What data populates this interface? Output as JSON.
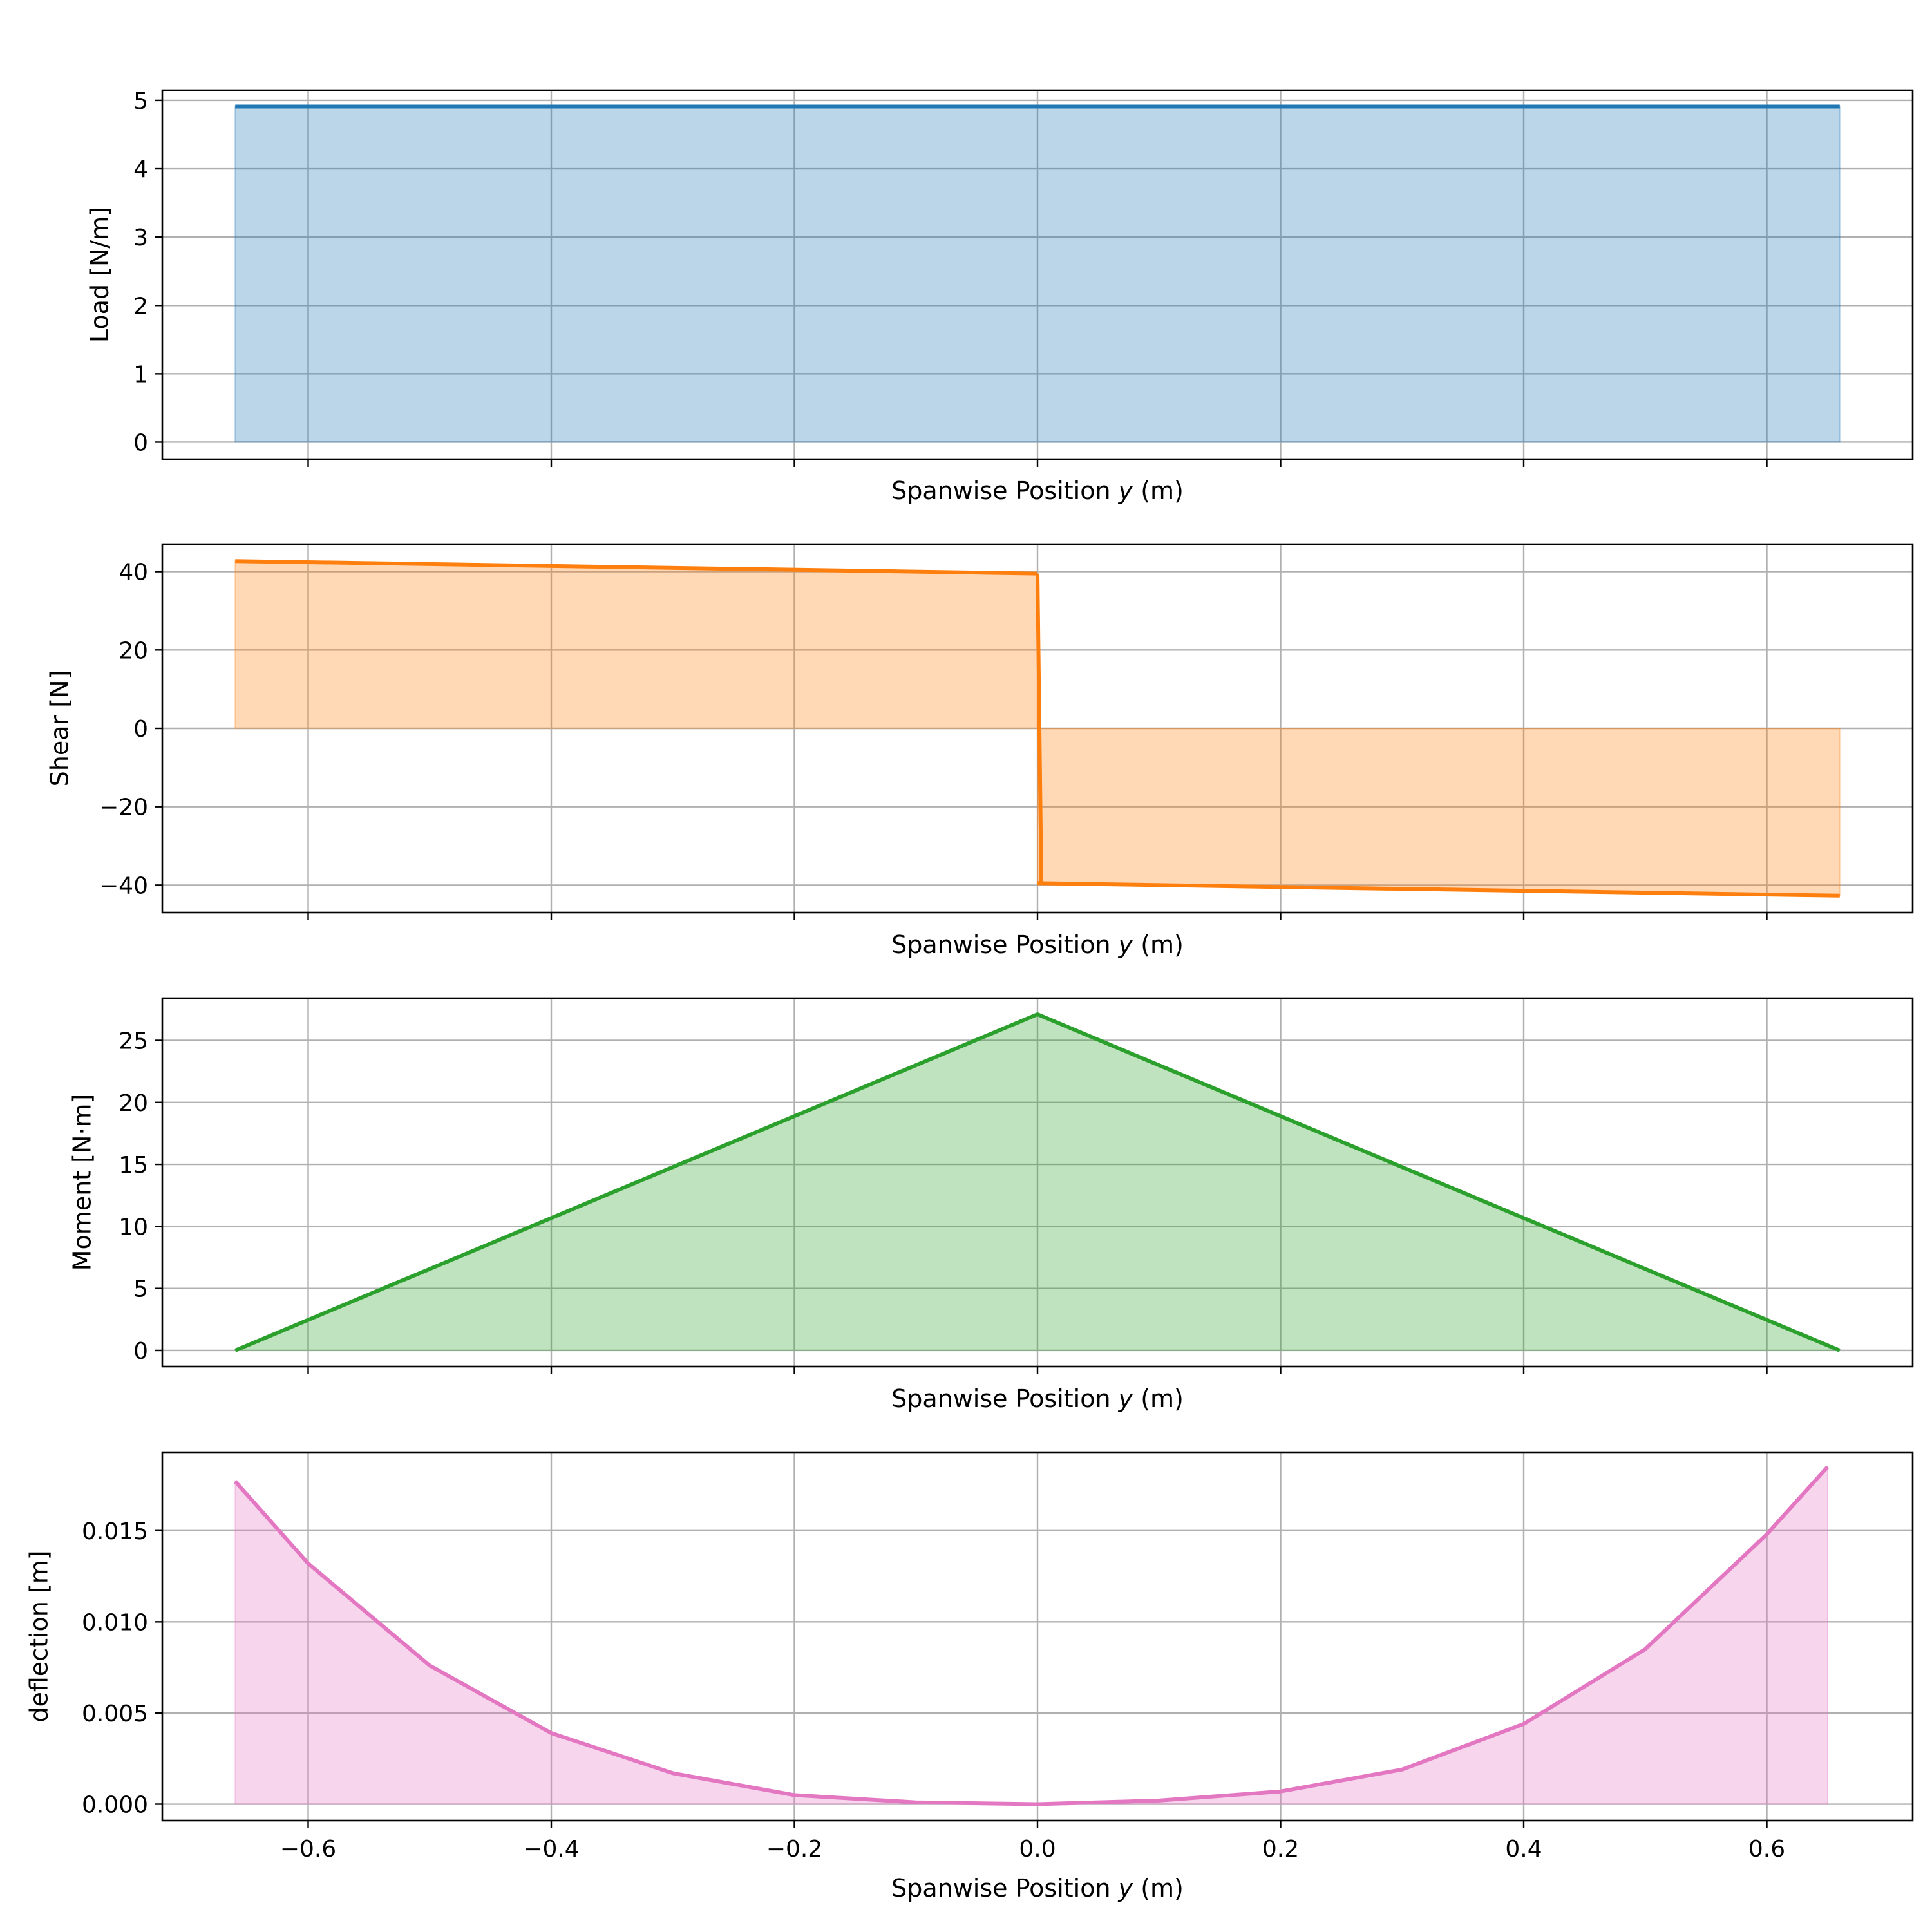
{
  "chart_data": [
    {
      "type": "area",
      "xlabel_prefix": "Spanwise Position ",
      "xlabel_var": "y",
      "xlabel_suffix": " (m)",
      "ylabel": "Load [N/m]",
      "xlim": [
        -0.72,
        0.72
      ],
      "ylim": [
        -0.25,
        5.15
      ],
      "xticks": [
        -0.6,
        -0.4,
        -0.2,
        0.0,
        0.2,
        0.4,
        0.6
      ],
      "show_xtick_labels": false,
      "yticks": [
        0,
        1,
        2,
        3,
        4,
        5
      ],
      "ytick_labels": [
        "0",
        "1",
        "2",
        "3",
        "4",
        "5"
      ],
      "grid": true,
      "color": "#1f77b4",
      "series": [
        {
          "x": [
            -0.66,
            0.66
          ],
          "y": [
            4.91,
            4.91
          ]
        }
      ]
    },
    {
      "type": "area",
      "xlabel_prefix": "Spanwise Position ",
      "xlabel_var": "y",
      "xlabel_suffix": " (m)",
      "ylabel": "Shear [N]",
      "xlim": [
        -0.72,
        0.72
      ],
      "ylim": [
        -47,
        47
      ],
      "xticks": [
        -0.6,
        -0.4,
        -0.2,
        0.0,
        0.2,
        0.4,
        0.6
      ],
      "show_xtick_labels": false,
      "yticks": [
        -40,
        -20,
        0,
        20,
        40
      ],
      "ytick_labels": [
        "−40",
        "−20",
        "0",
        "20",
        "40"
      ],
      "grid": true,
      "color": "#ff7f0e",
      "series": [
        {
          "x": [
            -0.66,
            0.0
          ],
          "y": [
            42.7,
            39.5
          ]
        },
        {
          "x": [
            0.0,
            0.66
          ],
          "y": [
            -39.5,
            -42.7
          ]
        }
      ]
    },
    {
      "type": "area",
      "xlabel_prefix": "Spanwise Position ",
      "xlabel_var": "y",
      "xlabel_suffix": " (m)",
      "ylabel": "Moment [N·m]",
      "xlim": [
        -0.72,
        0.72
      ],
      "ylim": [
        -1.3,
        28.4
      ],
      "xticks": [
        -0.6,
        -0.4,
        -0.2,
        0.0,
        0.2,
        0.4,
        0.6
      ],
      "show_xtick_labels": false,
      "yticks": [
        0,
        5,
        10,
        15,
        20,
        25
      ],
      "ytick_labels": [
        "0",
        "5",
        "10",
        "15",
        "20",
        "25"
      ],
      "grid": true,
      "color": "#2ca02c",
      "series": [
        {
          "x": [
            -0.66,
            0.0,
            0.66
          ],
          "y": [
            0.0,
            27.1,
            0.0
          ]
        }
      ]
    },
    {
      "type": "area",
      "xlabel_prefix": "Spanwise Position ",
      "xlabel_var": "y",
      "xlabel_suffix": " (m)",
      "ylabel": "deflection [m]",
      "xlim": [
        -0.72,
        0.72
      ],
      "ylim": [
        -0.0009,
        0.0193
      ],
      "xticks": [
        -0.6,
        -0.4,
        -0.2,
        0.0,
        0.2,
        0.4,
        0.6
      ],
      "show_xtick_labels": true,
      "xtick_labels": [
        "−0.6",
        "−0.4",
        "−0.2",
        "0.0",
        "0.2",
        "0.4",
        "0.6"
      ],
      "yticks": [
        0.0,
        0.005,
        0.01,
        0.015
      ],
      "ytick_labels": [
        "0.000",
        "0.005",
        "0.010",
        "0.015"
      ],
      "grid": true,
      "color": "#e377c2",
      "series": [
        {
          "x": [
            -0.66,
            -0.6,
            -0.5,
            -0.4,
            -0.3,
            -0.2,
            -0.1,
            0.0,
            0.1,
            0.2,
            0.3,
            0.4,
            0.5,
            0.6,
            0.65
          ],
          "y": [
            0.0177,
            0.0132,
            0.0076,
            0.0039,
            0.0017,
            0.0005,
            0.0001,
            0.0,
            0.0002,
            0.0007,
            0.0019,
            0.0044,
            0.0085,
            0.0148,
            0.0185
          ]
        }
      ]
    }
  ]
}
